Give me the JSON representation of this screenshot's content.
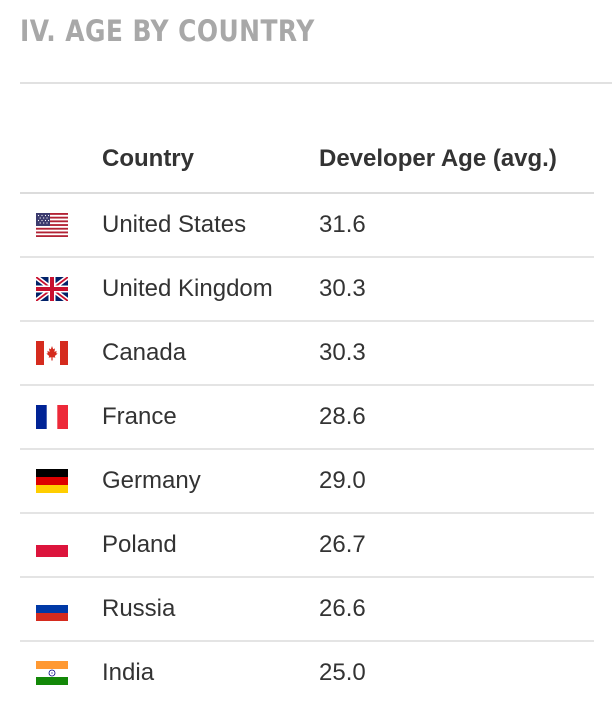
{
  "section": {
    "title": "IV. AGE BY COUNTRY"
  },
  "table": {
    "headers": {
      "flag": "",
      "country": "Country",
      "age": "Developer Age (avg.)"
    },
    "rows": [
      {
        "flag_icon": "us-flag-icon",
        "country": "United States",
        "age": "31.6"
      },
      {
        "flag_icon": "uk-flag-icon",
        "country": "United Kingdom",
        "age": "30.3"
      },
      {
        "flag_icon": "canada-flag-icon",
        "country": "Canada",
        "age": "30.3"
      },
      {
        "flag_icon": "france-flag-icon",
        "country": "France",
        "age": "28.6"
      },
      {
        "flag_icon": "germany-flag-icon",
        "country": "Germany",
        "age": "29.0"
      },
      {
        "flag_icon": "poland-flag-icon",
        "country": "Poland",
        "age": "26.7"
      },
      {
        "flag_icon": "russia-flag-icon",
        "country": "Russia",
        "age": "26.6"
      },
      {
        "flag_icon": "india-flag-icon",
        "country": "India",
        "age": "25.0"
      }
    ]
  }
}
